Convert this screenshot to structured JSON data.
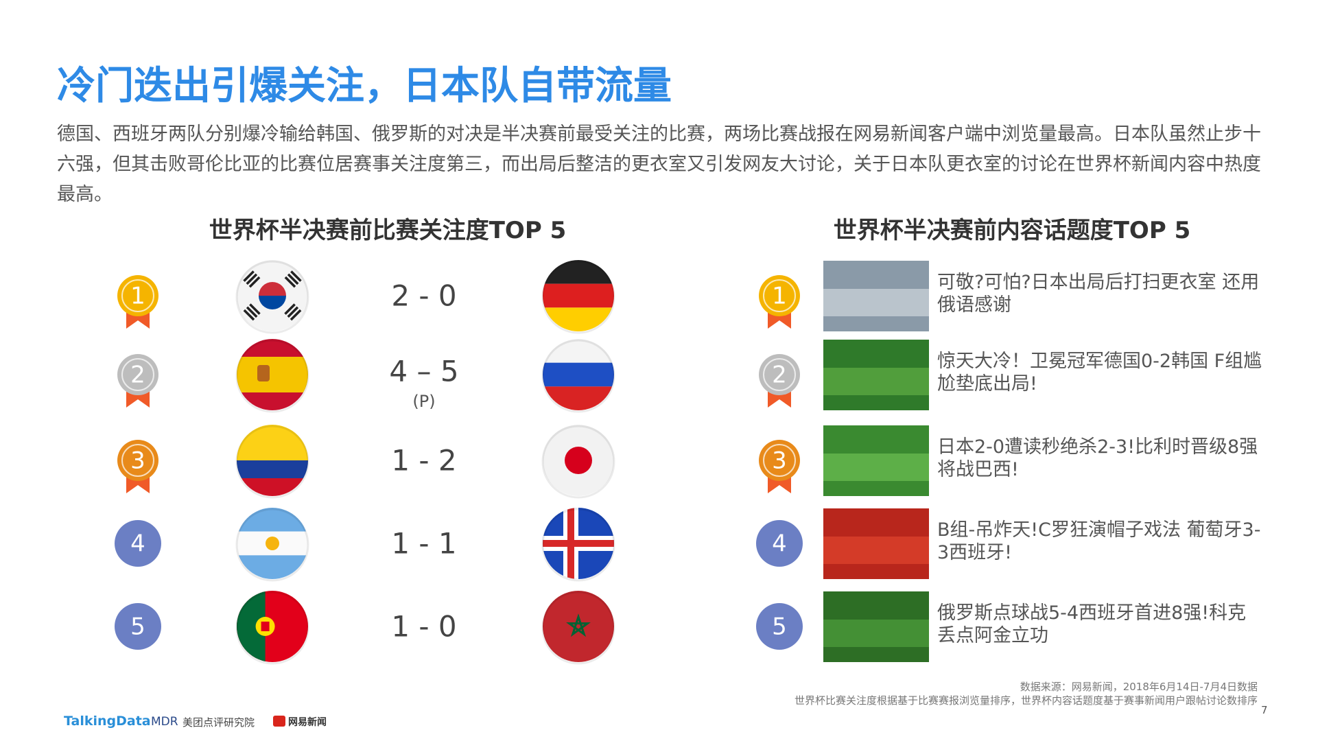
{
  "header": {
    "title": "冷门迭出引爆关注，日本队自带流量",
    "intro": "德国、西班牙两队分别爆冷输给韩国、俄罗斯的对决是半决赛前最受关注的比赛，两场比赛战报在网易新闻客户端中浏览量最高。日本队虽然止步十六强，但其击败哥伦比亚的比赛位居赛事关注度第三，而出局后整洁的更衣室又引发网友大讨论，关于日本队更衣室的讨论在世界杯新闻内容中热度最高。"
  },
  "matches": {
    "title": "世界杯半决赛前比赛关注度TOP 5",
    "rows": [
      {
        "rank": "1",
        "score": "2 - 0"
      },
      {
        "rank": "2",
        "score": "4 – 5",
        "note": "(P)"
      },
      {
        "rank": "3",
        "score": "1 - 2"
      },
      {
        "rank": "4",
        "score": "1 - 1"
      },
      {
        "rank": "5",
        "score": "1 - 0"
      }
    ]
  },
  "topics": {
    "title": "世界杯半决赛前内容话题度TOP 5",
    "rows": [
      {
        "rank": "1",
        "text": "可敬?可怕?日本出局后打扫更衣室 还用俄语感谢"
      },
      {
        "rank": "2",
        "text": "惊天大冷！卫冕冠军德国0-2韩国 F组尴尬垫底出局!"
      },
      {
        "rank": "3",
        "text": "日本2-0遭读秒绝杀2-3!比利时晋级8强将战巴西!"
      },
      {
        "rank": "4",
        "text": "B组-吊炸天!C罗狂演帽子戏法 葡萄牙3-3西班牙!"
      },
      {
        "rank": "5",
        "text": "俄罗斯点球战5-4西班牙首进8强!科克丢点阿金立功"
      }
    ]
  },
  "footer": {
    "source": "数据来源：网易新闻，2018年6月14日-7月4日数据",
    "note": "世界杯比赛关注度根据基于比赛赛报浏览量排序，世界杯内容话题度基于赛事新闻用户跟帖讨论数排序",
    "page": "7",
    "logos": [
      "TalkingData",
      "MDR",
      "美团点评研究院",
      "网易新闻"
    ]
  }
}
